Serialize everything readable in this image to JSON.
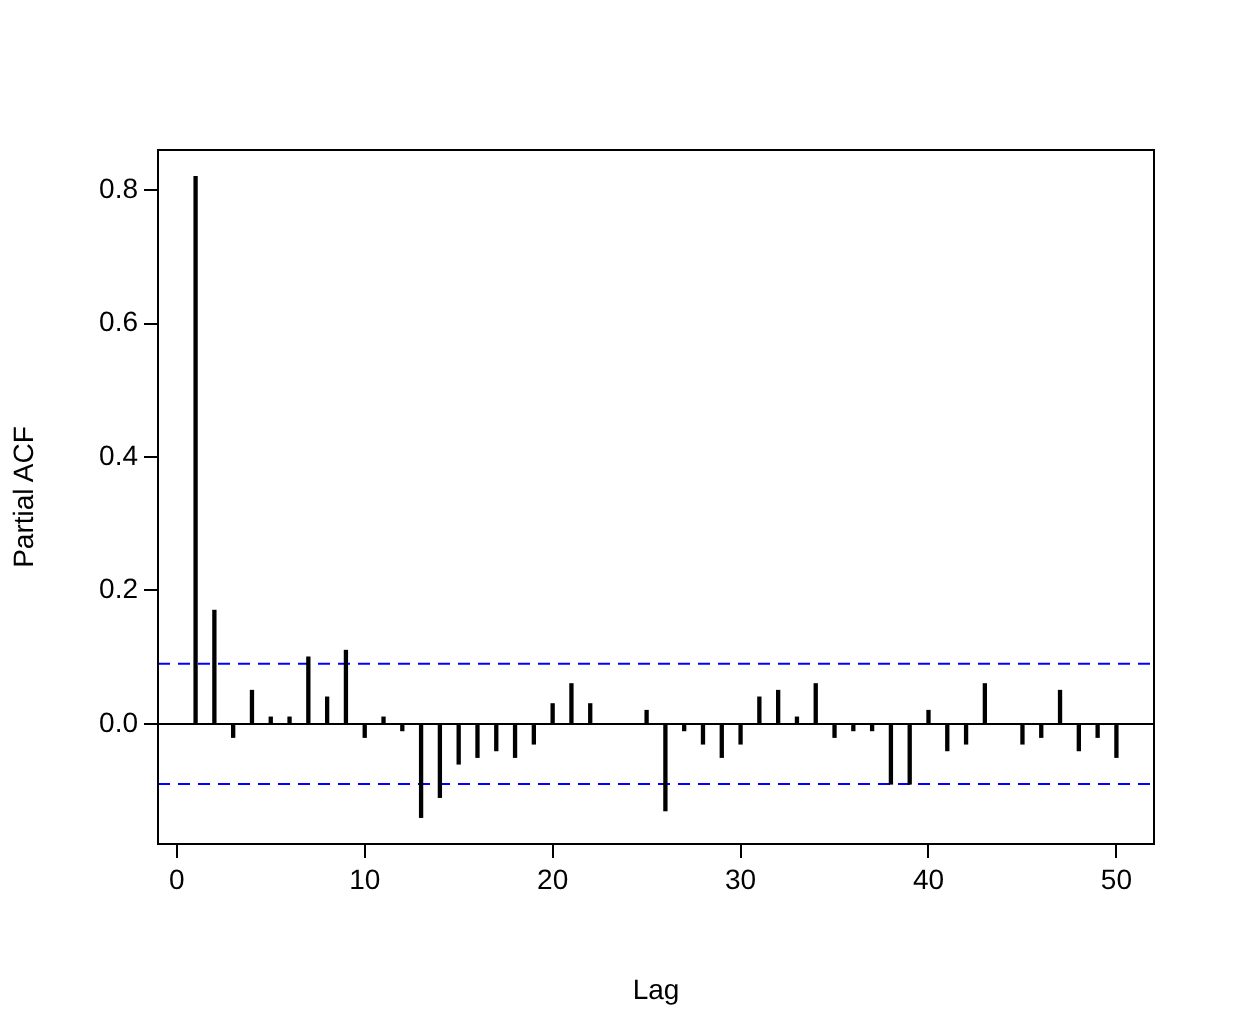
{
  "chart_data": {
    "type": "bar",
    "xlabel": "Lag",
    "ylabel": "Partial ACF",
    "x": [
      1,
      2,
      3,
      4,
      5,
      6,
      7,
      8,
      9,
      10,
      11,
      12,
      13,
      14,
      15,
      16,
      17,
      18,
      19,
      20,
      21,
      22,
      23,
      24,
      25,
      26,
      27,
      28,
      29,
      30,
      31,
      32,
      33,
      34,
      35,
      36,
      37,
      38,
      39,
      40,
      41,
      42,
      43,
      44,
      45,
      46,
      47,
      48,
      49,
      50
    ],
    "values": [
      0.82,
      0.17,
      -0.02,
      0.05,
      0.01,
      0.01,
      0.1,
      0.04,
      0.11,
      -0.02,
      0.01,
      -0.01,
      -0.14,
      -0.11,
      -0.06,
      -0.05,
      -0.04,
      -0.05,
      -0.03,
      0.03,
      0.06,
      0.03,
      0.0,
      0.0,
      0.02,
      -0.13,
      -0.01,
      -0.03,
      -0.05,
      -0.03,
      0.04,
      0.05,
      0.01,
      0.06,
      -0.02,
      -0.01,
      -0.01,
      -0.09,
      -0.09,
      0.02,
      -0.04,
      -0.03,
      0.06,
      0.0,
      -0.03,
      -0.02,
      0.05,
      -0.04,
      -0.02,
      -0.05
    ],
    "color": "#000000",
    "xlim": [
      -1,
      52
    ],
    "xticks": [
      0,
      10,
      20,
      30,
      40,
      50
    ],
    "ylim": [
      -0.18,
      0.86
    ],
    "yticks": [
      {
        "value": 0,
        "label": "0.0"
      },
      {
        "value": 0.2,
        "label": "0.2"
      },
      {
        "value": 0.4,
        "label": "0.4"
      },
      {
        "value": 0.6,
        "label": "0.6"
      },
      {
        "value": 0.8,
        "label": "0.8"
      }
    ],
    "ref_lines": [
      {
        "axis": "y",
        "value": 0,
        "color": "#000000",
        "line_style": "solid"
      },
      {
        "axis": "y",
        "value": 0.09,
        "color": "#0000ff",
        "line_style": "dashed"
      },
      {
        "axis": "y",
        "value": -0.09,
        "color": "#0000ff",
        "line_style": "dashed"
      }
    ],
    "grid": false,
    "legend": false
  }
}
